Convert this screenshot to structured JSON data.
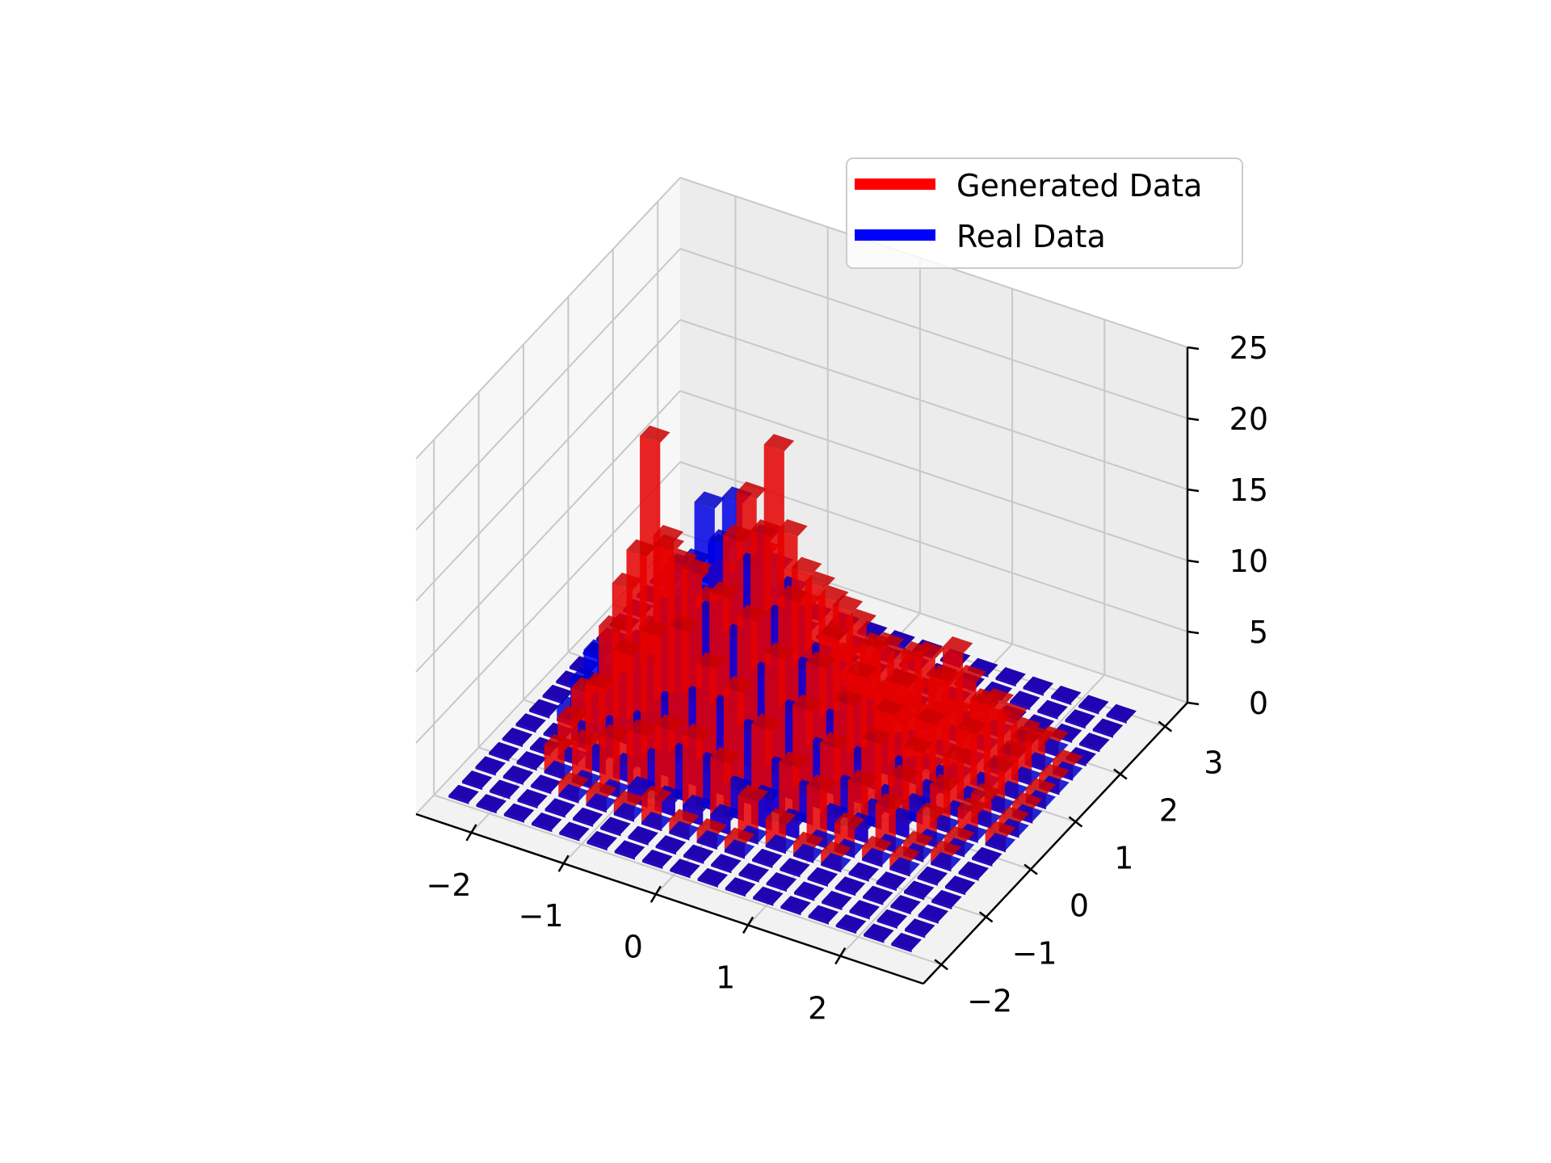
{
  "chart_data": {
    "type": "bar3d",
    "title": "",
    "xlabel": "",
    "ylabel": "",
    "zlabel": "",
    "xlim": [
      -2.6,
      2.9
    ],
    "ylim": [
      -2.4,
      3.5
    ],
    "zlim": [
      0,
      25
    ],
    "grid": true,
    "legend_placement": "top-right",
    "x_ticks": [
      -2,
      -1,
      0,
      1,
      2
    ],
    "x_tick_labels": [
      "−2",
      "−1",
      "0",
      "1",
      "2"
    ],
    "y_ticks": [
      -2,
      -1,
      0,
      1,
      2,
      3
    ],
    "y_tick_labels": [
      "−2",
      "−1",
      "0",
      "1",
      "2",
      "3"
    ],
    "z_ticks": [
      0,
      5,
      10,
      15,
      20,
      25
    ],
    "z_tick_labels": [
      "0",
      "5",
      "10",
      "15",
      "20",
      "25"
    ],
    "bins": {
      "x_edges": [
        -2.5,
        -2.2,
        -1.9,
        -1.6,
        -1.3,
        -1.0,
        -0.7,
        -0.4,
        -0.1,
        0.2,
        0.5,
        0.8,
        1.1,
        1.4,
        1.7,
        2.0,
        2.3,
        2.6
      ],
      "y_edges": [
        -2.0,
        -1.7,
        -1.4,
        -1.1,
        -0.8,
        -0.5,
        -0.2,
        0.1,
        0.4,
        0.7,
        1.0,
        1.3,
        1.6,
        1.9,
        2.2,
        2.5,
        2.8,
        3.1
      ]
    },
    "series": [
      {
        "name": "Real Data",
        "color": "#0000ff",
        "values": [
          [
            0,
            0,
            0,
            0,
            0,
            0,
            0,
            0,
            0,
            0,
            0,
            0,
            0,
            0,
            0,
            0,
            0
          ],
          [
            0,
            0,
            0,
            0,
            0,
            0,
            1,
            2,
            3,
            2,
            0,
            0,
            0,
            0,
            0,
            0,
            0
          ],
          [
            0,
            0,
            0,
            0,
            0,
            1,
            2,
            3,
            4,
            3,
            1,
            0,
            0,
            0,
            0,
            0,
            0
          ],
          [
            0,
            0,
            0,
            0,
            1,
            2,
            4,
            6,
            6,
            4,
            2,
            1,
            0,
            0,
            0,
            0,
            0
          ],
          [
            0,
            0,
            0,
            0,
            1,
            3,
            6,
            9,
            11,
            8,
            4,
            2,
            0,
            0,
            0,
            0,
            0
          ],
          [
            0,
            0,
            0,
            1,
            2,
            5,
            9,
            13,
            16,
            12,
            6,
            3,
            1,
            0,
            0,
            0,
            0
          ],
          [
            0,
            0,
            0,
            1,
            3,
            6,
            11,
            15,
            17,
            13,
            7,
            3,
            1,
            0,
            0,
            0,
            0
          ],
          [
            0,
            0,
            0,
            1,
            3,
            6,
            10,
            14,
            15,
            12,
            6,
            3,
            1,
            0,
            0,
            0,
            0
          ],
          [
            0,
            0,
            0,
            1,
            2,
            5,
            8,
            11,
            12,
            9,
            5,
            2,
            1,
            0,
            0,
            0,
            0
          ],
          [
            0,
            0,
            0,
            0,
            2,
            3,
            6,
            8,
            8,
            6,
            3,
            1,
            0,
            0,
            0,
            0,
            0
          ],
          [
            0,
            0,
            0,
            0,
            1,
            2,
            4,
            5,
            5,
            4,
            2,
            1,
            0,
            0,
            0,
            0,
            0
          ],
          [
            0,
            0,
            0,
            0,
            0,
            1,
            2,
            3,
            3,
            2,
            1,
            0,
            0,
            0,
            0,
            0,
            0
          ],
          [
            0,
            0,
            0,
            0,
            0,
            1,
            1,
            1,
            2,
            1,
            0,
            0,
            0,
            0,
            0,
            0,
            0
          ],
          [
            0,
            0,
            0,
            0,
            0,
            0,
            1,
            1,
            1,
            1,
            0,
            0,
            0,
            0,
            0,
            0,
            0
          ],
          [
            0,
            0,
            0,
            0,
            0,
            0,
            0,
            0,
            0,
            0,
            0,
            0,
            0,
            0,
            0,
            0,
            0
          ],
          [
            0,
            0,
            0,
            0,
            0,
            0,
            0,
            0,
            0,
            0,
            0,
            0,
            0,
            0,
            0,
            0,
            0
          ],
          [
            0,
            0,
            0,
            0,
            0,
            0,
            0,
            0,
            0,
            0,
            0,
            0,
            0,
            0,
            0,
            0,
            0
          ]
        ]
      },
      {
        "name": "Generated Data",
        "color": "#ff0000",
        "values": [
          [
            0,
            0,
            0,
            0,
            0,
            0,
            0,
            0,
            0,
            0,
            0,
            0,
            0,
            0,
            0,
            0,
            0
          ],
          [
            0,
            0,
            0,
            0,
            0,
            0,
            0,
            0,
            0,
            0,
            0,
            0,
            0,
            0,
            0,
            0,
            0
          ],
          [
            0,
            0,
            0,
            2,
            3,
            4,
            3,
            2,
            1,
            0,
            0,
            0,
            0,
            0,
            0,
            0,
            0
          ],
          [
            0,
            0,
            1,
            3,
            6,
            9,
            11,
            6,
            3,
            1,
            0,
            0,
            0,
            0,
            0,
            0,
            0
          ],
          [
            0,
            0,
            1,
            4,
            9,
            15,
            22,
            14,
            7,
            3,
            1,
            0,
            0,
            0,
            0,
            0,
            0
          ],
          [
            0,
            0,
            1,
            5,
            11,
            16,
            14,
            12,
            9,
            4,
            1,
            0,
            0,
            0,
            0,
            0,
            0
          ],
          [
            0,
            0,
            2,
            6,
            12,
            15,
            12,
            13,
            11,
            6,
            2,
            1,
            0,
            0,
            0,
            0,
            0
          ],
          [
            0,
            0,
            1,
            6,
            10,
            14,
            17,
            19,
            14,
            8,
            3,
            1,
            0,
            0,
            0,
            0,
            0
          ],
          [
            0,
            0,
            1,
            5,
            9,
            13,
            18,
            23,
            16,
            10,
            5,
            2,
            0,
            0,
            0,
            0,
            0
          ],
          [
            0,
            0,
            1,
            3,
            7,
            11,
            14,
            15,
            13,
            11,
            6,
            2,
            1,
            0,
            0,
            0,
            0
          ],
          [
            0,
            0,
            0,
            2,
            5,
            8,
            10,
            11,
            12,
            10,
            7,
            3,
            1,
            0,
            0,
            0,
            0
          ],
          [
            0,
            0,
            0,
            1,
            4,
            6,
            8,
            9,
            10,
            9,
            7,
            4,
            1,
            0,
            0,
            0,
            0
          ],
          [
            0,
            0,
            0,
            1,
            2,
            4,
            6,
            7,
            8,
            9,
            8,
            5,
            2,
            0,
            0,
            0,
            0
          ],
          [
            0,
            0,
            0,
            0,
            1,
            3,
            4,
            5,
            6,
            8,
            9,
            6,
            3,
            1,
            0,
            0,
            0
          ],
          [
            0,
            0,
            0,
            0,
            1,
            1,
            2,
            3,
            4,
            5,
            6,
            5,
            3,
            1,
            0,
            0,
            0
          ],
          [
            0,
            0,
            0,
            0,
            0,
            1,
            1,
            2,
            2,
            3,
            3,
            3,
            2,
            1,
            0,
            0,
            0
          ],
          [
            0,
            0,
            0,
            0,
            0,
            0,
            0,
            1,
            1,
            1,
            1,
            1,
            1,
            0,
            0,
            0,
            0
          ]
        ]
      }
    ]
  }
}
